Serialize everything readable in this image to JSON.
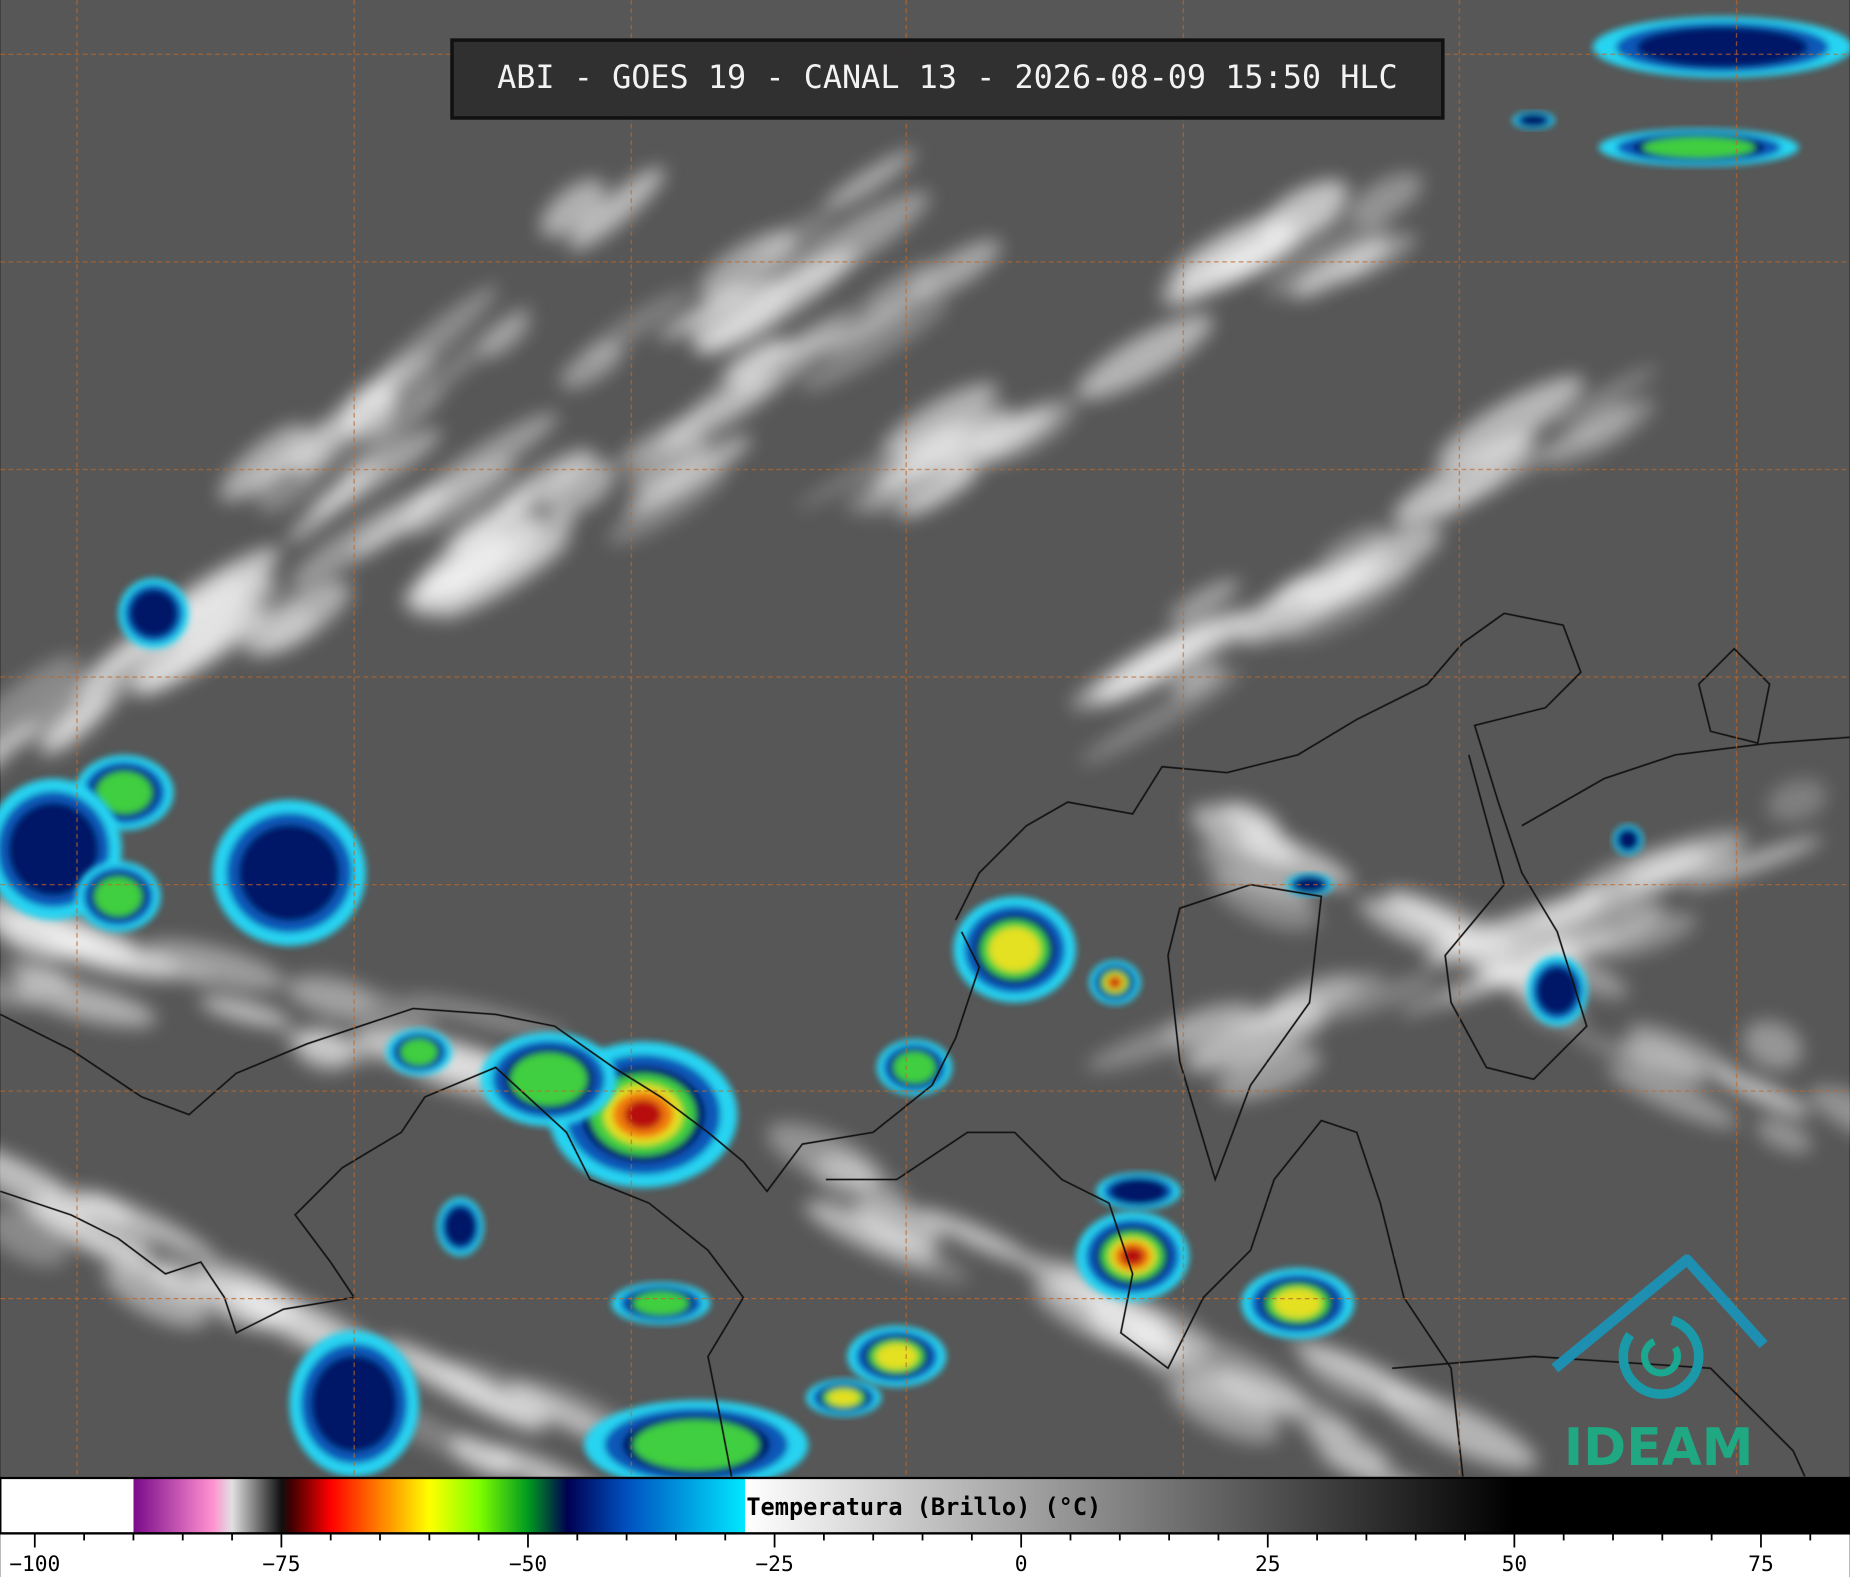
{
  "title": "ABI - GOES 19 - CANAL 13 - 2026-08-09 15:50 HLC",
  "logo": "IDEAM",
  "colorbar": {
    "label": "Temperatura (Brillo) (°C)",
    "lim": [
      -103.5,
      84
    ],
    "ticks": [
      {
        "value": -100,
        "label": "−100"
      },
      {
        "value": -75,
        "label": "−75"
      },
      {
        "value": -50,
        "label": "−50"
      },
      {
        "value": -25,
        "label": "−25"
      },
      0,
      25,
      50,
      75
    ],
    "minor_ticks": [
      -95,
      -90,
      -85,
      -80,
      -70,
      -65,
      -60,
      -55,
      -45,
      -40,
      -35,
      -30,
      -20,
      -15,
      -10,
      -5,
      5,
      10,
      15,
      20,
      30,
      35,
      40,
      45,
      55,
      60,
      65,
      70,
      80
    ],
    "stops": [
      {
        "value": -103.5,
        "color": "#ffffff"
      },
      {
        "value": -90,
        "color": "#ffffff"
      },
      {
        "value": -90,
        "color": "#7a0a8a"
      },
      {
        "value": -82,
        "color": "#ff90d0"
      },
      {
        "value": -80,
        "color": "#e0e0e0"
      },
      {
        "value": -75,
        "color": "#101010"
      },
      {
        "value": -74,
        "color": "#400000"
      },
      {
        "value": -70,
        "color": "#ff0000"
      },
      {
        "value": -65,
        "color": "#ff8000"
      },
      {
        "value": -60,
        "color": "#ffff00"
      },
      {
        "value": -55,
        "color": "#80ff00"
      },
      {
        "value": -50,
        "color": "#009a20"
      },
      {
        "value": -46,
        "color": "#000050"
      },
      {
        "value": -40,
        "color": "#0050c0"
      },
      {
        "value": -28,
        "color": "#00e8ff"
      },
      {
        "value": -28,
        "color": "#ffffff"
      },
      {
        "value": 50,
        "color": "#000000"
      },
      {
        "value": 84,
        "color": "#000000"
      }
    ]
  }
}
